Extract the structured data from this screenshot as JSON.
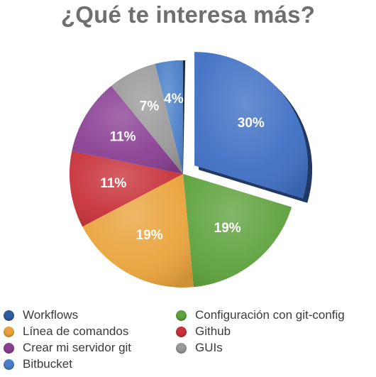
{
  "chart_data": {
    "type": "pie",
    "title": "¿Qué te interesa más?",
    "slices": [
      {
        "name": "Workflows",
        "value": 30,
        "label": "30%",
        "color": "#3f6fc4",
        "exploded": true
      },
      {
        "name": "Configuración con git-config",
        "value": 19,
        "label": "19%",
        "color": "#5ea23d"
      },
      {
        "name": "Línea de comandos",
        "value": 19,
        "label": "19%",
        "color": "#eaa33c"
      },
      {
        "name": "Github",
        "value": 11,
        "label": "11%",
        "color": "#c8323a"
      },
      {
        "name": "Crear mi servidor git",
        "value": 11,
        "label": "11%",
        "color": "#8a3f93"
      },
      {
        "name": "GUIs",
        "value": 7,
        "label": "7%",
        "color": "#9a9a9a"
      },
      {
        "name": "Bitbucket",
        "value": 4,
        "label": "4%",
        "color": "#4a80c8"
      }
    ],
    "dark_wedge_color": "#1f2e48",
    "legend_position": "bottom"
  },
  "legend": {
    "items": [
      {
        "label": "Workflows",
        "color": "#2f5c9e"
      },
      {
        "label": "Configuración con git-config",
        "color": "#5ea23d"
      },
      {
        "label": "Línea de comandos",
        "color": "#eaa33c"
      },
      {
        "label": "Github",
        "color": "#c8323a"
      },
      {
        "label": "Crear mi servidor git",
        "color": "#8a3f93"
      },
      {
        "label": "GUIs",
        "color": "#9a9a9a"
      },
      {
        "label": "Bitbucket",
        "color": "#4a80c8"
      }
    ]
  }
}
